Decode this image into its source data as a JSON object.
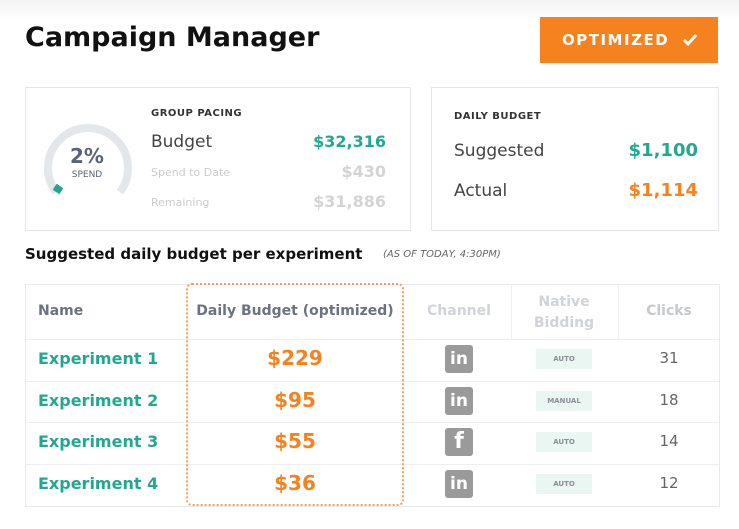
{
  "header": {
    "title": "Campaign Manager",
    "button": "OPTIMIZED"
  },
  "pacing": {
    "title": "GROUP PACING",
    "gauge_value": "2%",
    "gauge_label": "SPEND",
    "rows": [
      {
        "label": "Budget",
        "value": "$32,316"
      },
      {
        "label": "Spend to Date",
        "value": "$430"
      },
      {
        "label": "Remaining",
        "value": "$31,886"
      }
    ]
  },
  "daily_budget": {
    "title": "DAILY BUDGET",
    "rows": [
      {
        "label": "Suggested",
        "value": "$1,100"
      },
      {
        "label": "Actual",
        "value": "$1,114"
      }
    ]
  },
  "section": {
    "title": "Suggested daily budget per experiment",
    "note": "(AS OF TODAY, 4:30PM)"
  },
  "table": {
    "columns": [
      "Name",
      "Daily Budget (optimized)",
      "Channel",
      "Native Bidding",
      "Clicks"
    ],
    "rows": [
      {
        "name": "Experiment 1",
        "budget": "$229",
        "channel": "in",
        "bidding": "AUTO",
        "clicks": 31
      },
      {
        "name": "Experiment 2",
        "budget": "$95",
        "channel": "in",
        "bidding": "MANUAL",
        "clicks": 18
      },
      {
        "name": "Experiment 3",
        "budget": "$55",
        "channel": "f",
        "bidding": "AUTO",
        "clicks": 14
      },
      {
        "name": "Experiment 4",
        "budget": "$36",
        "channel": "in",
        "bidding": "AUTO",
        "clicks": 12
      }
    ]
  }
}
